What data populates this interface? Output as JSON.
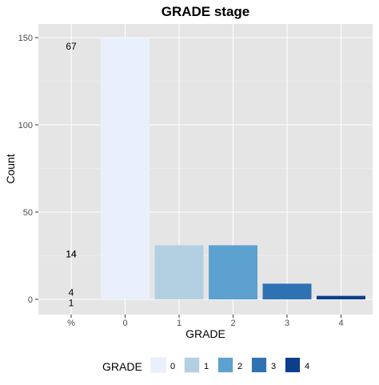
{
  "chart_data": {
    "type": "bar",
    "title": "GRADE stage",
    "xlabel": "GRADE",
    "ylabel": "Count",
    "categories": [
      "0",
      "1",
      "2",
      "3",
      "4"
    ],
    "values": [
      150,
      31,
      31,
      9,
      2
    ],
    "colors": [
      "#eaf0fb",
      "#b3d0e3",
      "#5ca1cf",
      "#2f72b3",
      "#0d3e8c"
    ],
    "ylim": [
      0,
      153
    ],
    "yticks": [
      0,
      50,
      100,
      150
    ],
    "extra_x_tick": "%",
    "percent_labels": [
      {
        "text": "67",
        "y": 145
      },
      {
        "text": "14",
        "y": 26
      },
      {
        "text": "14",
        "y": 26
      },
      {
        "text": "4",
        "y": 4
      },
      {
        "text": "1",
        "y": -2
      }
    ],
    "grid": true,
    "legend": {
      "title": "GRADE",
      "position": "bottom",
      "labels": [
        "0",
        "1",
        "2",
        "3",
        "4"
      ]
    }
  }
}
